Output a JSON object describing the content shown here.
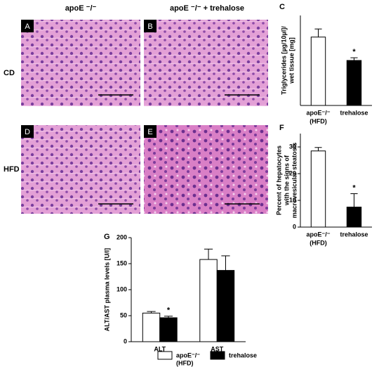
{
  "figure": {
    "column_headers": [
      "apoE ⁻/⁻",
      "apoE ⁻/⁻ + trehalose"
    ],
    "row_labels": [
      "CD",
      "HFD"
    ],
    "panel_letters": [
      "A",
      "B",
      "D",
      "E"
    ]
  },
  "chart_data": [
    {
      "type": "bar",
      "panel": "C",
      "ylabel": [
        "Triglycerides [µg/10µl]/",
        "wet tissue [mg]"
      ],
      "categories": [
        [
          "apoE⁻/⁻",
          "(HFD)"
        ],
        "trehalose"
      ],
      "values": [
        0.76,
        0.5
      ],
      "errors": [
        0.09,
        0.03
      ],
      "colors": [
        "#ffffff",
        "#000000"
      ],
      "significance": [
        null,
        "*"
      ],
      "ylim": [
        0,
        1
      ]
    },
    {
      "type": "bar",
      "panel": "F",
      "ylabel": [
        "Percent of hepatocytes",
        "with the signs of",
        "macrovesicular steatosis"
      ],
      "categories": [
        [
          "apoE⁻/⁻",
          "(HFD)"
        ],
        "trehalose"
      ],
      "values": [
        28.5,
        7.5
      ],
      "errors": [
        1.3,
        5
      ],
      "colors": [
        "#ffffff",
        "#000000"
      ],
      "significance": [
        null,
        "*"
      ],
      "ylim": [
        0,
        35
      ],
      "yticks": [
        0,
        10,
        20,
        30
      ]
    },
    {
      "type": "bar",
      "panel": "G",
      "ylabel": [
        "ALT/AST plasma levels [U/l]"
      ],
      "categories": [
        "ALT",
        "AST"
      ],
      "series": [
        {
          "name": [
            "apoE⁻/⁻",
            "(HFD)"
          ],
          "color": "#ffffff",
          "values": [
            55,
            158
          ],
          "errors": [
            3,
            20
          ],
          "significance": [
            null,
            null
          ]
        },
        {
          "name": [
            "trehalose"
          ],
          "color": "#000000",
          "values": [
            46,
            137
          ],
          "errors": [
            3,
            28
          ],
          "significance": [
            "*",
            null
          ]
        }
      ],
      "ylim": [
        0,
        200
      ],
      "yticks": [
        0,
        50,
        100,
        150,
        200
      ],
      "legend": "bottom"
    }
  ]
}
